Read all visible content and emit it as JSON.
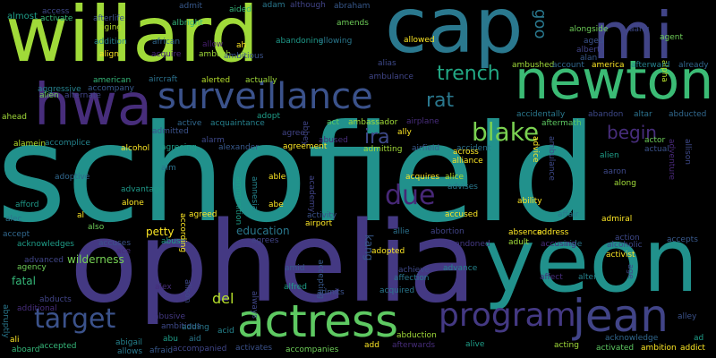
{
  "words": [
    {
      "text": "schofield",
      "color": "#21918c"
    },
    {
      "text": "ophelia",
      "color": "#443983"
    },
    {
      "text": "yeon",
      "color": "#21918c"
    },
    {
      "text": "willard",
      "color": "#a0da39"
    },
    {
      "text": "cap",
      "color": "#2a788e"
    },
    {
      "text": "mi",
      "color": "#414487"
    },
    {
      "text": "newton",
      "color": "#3bbb75"
    },
    {
      "text": "hwa",
      "color": "#472d7b"
    },
    {
      "text": "surveillance",
      "color": "#3b528b"
    },
    {
      "text": "actress",
      "color": "#5ec962"
    },
    {
      "text": "program",
      "color": "#443983"
    },
    {
      "text": "jean",
      "color": "#414487"
    },
    {
      "text": "target",
      "color": "#3b528b"
    },
    {
      "text": "blake",
      "color": "#7ad151"
    },
    {
      "text": "trench",
      "color": "#22a884"
    },
    {
      "text": "due",
      "color": "#482878"
    },
    {
      "text": "ira",
      "color": "#3e4989"
    },
    {
      "text": "begin",
      "color": "#472d7b"
    },
    {
      "text": "rat",
      "color": "#2a788e"
    },
    {
      "text": "goo",
      "color": "#2a788e"
    },
    {
      "text": "wilderness",
      "color": "#75d054"
    },
    {
      "text": "petty",
      "color": "#fde725"
    },
    {
      "text": "del",
      "color": "#b5de2b"
    },
    {
      "text": "fatal",
      "color": "#35b779"
    },
    {
      "text": "education",
      "color": "#2a788e"
    },
    {
      "text": "kang",
      "color": "#38598c"
    },
    {
      "text": "almost",
      "color": "#1f9e89"
    },
    {
      "text": "access",
      "color": "#3e4989"
    },
    {
      "text": "activate",
      "color": "#35b779"
    },
    {
      "text": "afterlife",
      "color": "#3b528b"
    },
    {
      "text": "aging",
      "color": "#b5de2b"
    },
    {
      "text": "addition",
      "color": "#26828e"
    },
    {
      "text": "align",
      "color": "#fde725"
    },
    {
      "text": "african",
      "color": "#31688e"
    },
    {
      "text": "acquire",
      "color": "#482878"
    },
    {
      "text": "aircraft",
      "color": "#2c728e"
    },
    {
      "text": "alerted",
      "color": "#b5de2b"
    },
    {
      "text": "american",
      "color": "#35b779"
    },
    {
      "text": "accompany",
      "color": "#38598c"
    },
    {
      "text": "aggressive",
      "color": "#26828e"
    },
    {
      "text": "alien",
      "color": "#6ece58"
    },
    {
      "text": "alternate",
      "color": "#414487"
    },
    {
      "text": "ahead",
      "color": "#a0da39"
    },
    {
      "text": "accomplice",
      "color": "#25848e"
    },
    {
      "text": "adoptive",
      "color": "#31688e"
    },
    {
      "text": "afford",
      "color": "#1f9a8a"
    },
    {
      "text": "alec",
      "color": "#2c728e"
    },
    {
      "text": "alamein",
      "color": "#b5de2b"
    },
    {
      "text": "accept",
      "color": "#31688e"
    },
    {
      "text": "acknowledges",
      "color": "#1f9e89"
    },
    {
      "text": "accuses",
      "color": "#3b528b"
    },
    {
      "text": "advanced",
      "color": "#404688"
    },
    {
      "text": "agency",
      "color": "#6ece58"
    },
    {
      "text": "abducts",
      "color": "#414487"
    },
    {
      "text": "additional",
      "color": "#472d7b"
    },
    {
      "text": "abruptly",
      "color": "#2a788e"
    },
    {
      "text": "ali",
      "color": "#fde725"
    },
    {
      "text": "aboard",
      "color": "#35b779"
    },
    {
      "text": "accepted",
      "color": "#35b779"
    },
    {
      "text": "abigail",
      "color": "#26828e"
    },
    {
      "text": "allows",
      "color": "#2a788e"
    },
    {
      "text": "admit",
      "color": "#38598c"
    },
    {
      "text": "albright",
      "color": "#35b779"
    },
    {
      "text": "allow",
      "color": "#481f70"
    },
    {
      "text": "ambush",
      "color": "#a0da39"
    },
    {
      "text": "aided",
      "color": "#35b779"
    },
    {
      "text": "adam",
      "color": "#2a788e"
    },
    {
      "text": "although",
      "color": "#414487"
    },
    {
      "text": "abandoning",
      "color": "#1f9a8a"
    },
    {
      "text": "abraham",
      "color": "#38598c"
    },
    {
      "text": "amends",
      "color": "#6ece58"
    },
    {
      "text": "allowing",
      "color": "#2a788e"
    },
    {
      "text": "alongside",
      "color": "#6ece58"
    },
    {
      "text": "aang",
      "color": "#3e4989"
    },
    {
      "text": "albert",
      "color": "#414487"
    },
    {
      "text": "aged",
      "color": "#3b528b"
    },
    {
      "text": "alan",
      "color": "#38598c"
    },
    {
      "text": "agent",
      "color": "#6ece58"
    },
    {
      "text": "alpha",
      "color": "#b5de2b"
    },
    {
      "text": "allowed",
      "color": "#fde725"
    },
    {
      "text": "alias",
      "color": "#3e4989"
    },
    {
      "text": "ambulance",
      "color": "#404688"
    },
    {
      "text": "ambushed",
      "color": "#a0da39"
    },
    {
      "text": "account",
      "color": "#31688e"
    },
    {
      "text": "america",
      "color": "#fde725"
    },
    {
      "text": "afterward",
      "color": "#26828e"
    },
    {
      "text": "already",
      "color": "#31688e"
    },
    {
      "text": "actually",
      "color": "#a0da39"
    },
    {
      "text": "aftermath",
      "color": "#5ec962"
    },
    {
      "text": "abandon",
      "color": "#3e4989"
    },
    {
      "text": "altar",
      "color": "#2c728e"
    },
    {
      "text": "abducted",
      "color": "#31688e"
    },
    {
      "text": "accidentally",
      "color": "#2a788e"
    },
    {
      "text": "ah",
      "color": "#fde725"
    },
    {
      "text": "ambitious",
      "color": "#3b528b"
    },
    {
      "text": "active",
      "color": "#31688e"
    },
    {
      "text": "acquaintance",
      "color": "#26828e"
    },
    {
      "text": "adopt",
      "color": "#1f9e89"
    },
    {
      "text": "act",
      "color": "#5ec962"
    },
    {
      "text": "ambassador",
      "color": "#a0da39"
    },
    {
      "text": "airplane",
      "color": "#472d7b"
    },
    {
      "text": "admitted",
      "color": "#3b528b"
    },
    {
      "text": "alarm",
      "color": "#3e4989"
    },
    {
      "text": "alexander",
      "color": "#38598c"
    },
    {
      "text": "agree",
      "color": "#414487"
    },
    {
      "text": "abbey",
      "color": "#404688"
    },
    {
      "text": "abused",
      "color": "#472d7b"
    },
    {
      "text": "ally",
      "color": "#fde725"
    },
    {
      "text": "agreement",
      "color": "#fde725"
    },
    {
      "text": "admitting",
      "color": "#a0da39"
    },
    {
      "text": "airfield",
      "color": "#38598c"
    },
    {
      "text": "accident",
      "color": "#2c728e"
    },
    {
      "text": "advice",
      "color": "#fde725"
    },
    {
      "text": "ambulance",
      "color": "#3e4989"
    },
    {
      "text": "alien",
      "color": "#1f9e89"
    },
    {
      "text": "actual",
      "color": "#3b528b"
    },
    {
      "text": "aaron",
      "color": "#3e4989"
    },
    {
      "text": "actor",
      "color": "#6ece58"
    },
    {
      "text": "adventure",
      "color": "#482878"
    },
    {
      "text": "allison",
      "color": "#3e4989"
    },
    {
      "text": "agreeing",
      "color": "#1f9e89"
    },
    {
      "text": "alcohol",
      "color": "#fde725"
    },
    {
      "text": "aim",
      "color": "#2c728e"
    },
    {
      "text": "able",
      "color": "#fde725"
    },
    {
      "text": "academy",
      "color": "#414487"
    },
    {
      "text": "across",
      "color": "#fde725"
    },
    {
      "text": "alliance",
      "color": "#fde725"
    },
    {
      "text": "alice",
      "color": "#b5de2b"
    },
    {
      "text": "advises",
      "color": "#2a788e"
    },
    {
      "text": "acquires",
      "color": "#fde725"
    },
    {
      "text": "accused",
      "color": "#fde725"
    },
    {
      "text": "ability",
      "color": "#fde725"
    },
    {
      "text": "along",
      "color": "#a0da39"
    },
    {
      "text": "affair",
      "color": "#2a788e"
    },
    {
      "text": "admiral",
      "color": "#fde725"
    },
    {
      "text": "ammunition",
      "color": "#1f9e89"
    },
    {
      "text": "amnesia",
      "color": "#25848e"
    },
    {
      "text": "advantage",
      "color": "#1f9a8a"
    },
    {
      "text": "alone",
      "color": "#fde725"
    },
    {
      "text": "agreed",
      "color": "#fde725"
    },
    {
      "text": "abe",
      "color": "#fde725"
    },
    {
      "text": "al",
      "color": "#fde725"
    },
    {
      "text": "also",
      "color": "#6ece58"
    },
    {
      "text": "activity",
      "color": "#3b528b"
    },
    {
      "text": "airport",
      "color": "#fde725"
    },
    {
      "text": "allie",
      "color": "#2c728e"
    },
    {
      "text": "abortion",
      "color": "#414487"
    },
    {
      "text": "abandoned",
      "color": "#443983"
    },
    {
      "text": "aide",
      "color": "#2a788e"
    },
    {
      "text": "action",
      "color": "#3e4989"
    },
    {
      "text": "alcoholic",
      "color": "#3e4989"
    },
    {
      "text": "activist",
      "color": "#fde725"
    },
    {
      "text": "accepts",
      "color": "#38598c"
    },
    {
      "text": "ace",
      "color": "#472d7b"
    },
    {
      "text": "abuse",
      "color": "#1f9e89"
    },
    {
      "text": "agrees",
      "color": "#414487"
    },
    {
      "text": "according",
      "color": "#fde725"
    },
    {
      "text": "absence",
      "color": "#fde725"
    },
    {
      "text": "address",
      "color": "#fde725"
    },
    {
      "text": "accusing",
      "color": "#472d7b"
    },
    {
      "text": "adult",
      "color": "#a0da39"
    },
    {
      "text": "adopted",
      "color": "#fde725"
    },
    {
      "text": "achieve",
      "color": "#3e4989"
    },
    {
      "text": "affection",
      "color": "#2a788e"
    },
    {
      "text": "acquired",
      "color": "#2a788e"
    },
    {
      "text": "advance",
      "color": "#25848e"
    },
    {
      "text": "affect",
      "color": "#472d7b"
    },
    {
      "text": "alter",
      "color": "#26828e"
    },
    {
      "text": "age",
      "color": "#3e4989"
    },
    {
      "text": "accepting",
      "color": "#38598c"
    },
    {
      "text": "alison",
      "color": "#3e4989"
    },
    {
      "text": "alex",
      "color": "#472d7b"
    },
    {
      "text": "alfred",
      "color": "#1f9e89"
    },
    {
      "text": "amid",
      "color": "#38598c"
    },
    {
      "text": "admits",
      "color": "#3b528b"
    },
    {
      "text": "always",
      "color": "#404688"
    },
    {
      "text": "abusive",
      "color": "#443983"
    },
    {
      "text": "ambitious",
      "color": "#3e4989"
    },
    {
      "text": "abu",
      "color": "#1f9e89"
    },
    {
      "text": "aid",
      "color": "#2a788e"
    },
    {
      "text": "afraid",
      "color": "#38598c"
    },
    {
      "text": "adding",
      "color": "#2a788e"
    },
    {
      "text": "accompanied",
      "color": "#404688"
    },
    {
      "text": "acid",
      "color": "#25848e"
    },
    {
      "text": "activates",
      "color": "#3b528b"
    },
    {
      "text": "accompanies",
      "color": "#6ece58"
    },
    {
      "text": "afterwards",
      "color": "#472d7b"
    },
    {
      "text": "alive",
      "color": "#1f9e89"
    },
    {
      "text": "abduction",
      "color": "#a0da39"
    },
    {
      "text": "acting",
      "color": "#a0da39"
    },
    {
      "text": "activated",
      "color": "#5ec962"
    },
    {
      "text": "ambition",
      "color": "#fde725"
    },
    {
      "text": "acknowledge",
      "color": "#31688e"
    },
    {
      "text": "addict",
      "color": "#fde725"
    },
    {
      "text": "alley",
      "color": "#3b528b"
    },
    {
      "text": "ad",
      "color": "#1f9e89"
    },
    {
      "text": "add",
      "color": "#fde725"
    }
  ]
}
